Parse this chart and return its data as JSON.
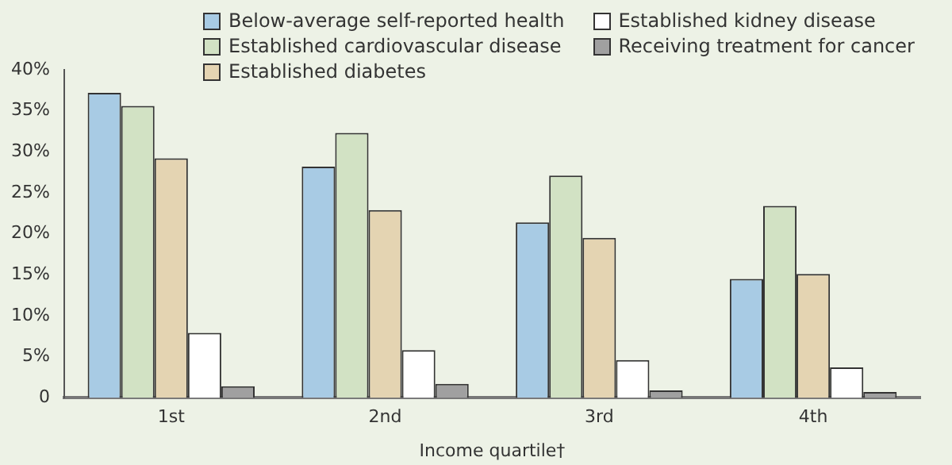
{
  "chart_data": {
    "type": "bar",
    "xlabel": "Income quartile†",
    "categories": [
      "1st",
      "2nd",
      "3rd",
      "4th"
    ],
    "series": [
      {
        "name": "Below-average self-reported health",
        "color": "#a8cbe4",
        "values": [
          37.2,
          28.2,
          21.4,
          14.5
        ]
      },
      {
        "name": "Established cardiovascular disease",
        "color": "#d2e2c4",
        "values": [
          35.6,
          32.3,
          27.1,
          23.4
        ]
      },
      {
        "name": "Established diabetes",
        "color": "#e4d4b2",
        "values": [
          29.2,
          22.9,
          19.5,
          15.1
        ]
      },
      {
        "name": "Established kidney disease",
        "color": "#ffffff",
        "values": [
          7.9,
          5.8,
          4.6,
          3.7
        ]
      },
      {
        "name": "Receiving treatment for cancer",
        "color": "#a0a0a0",
        "values": [
          1.4,
          1.7,
          0.9,
          0.7
        ]
      }
    ],
    "ylim": [
      0,
      40
    ],
    "yticks": [
      {
        "value": 0,
        "label": "0"
      },
      {
        "value": 5,
        "label": "5%"
      },
      {
        "value": 10,
        "label": "10%"
      },
      {
        "value": 15,
        "label": "15%"
      },
      {
        "value": 20,
        "label": "20%"
      },
      {
        "value": 25,
        "label": "25%"
      },
      {
        "value": 30,
        "label": "30%"
      },
      {
        "value": 35,
        "label": "35%"
      },
      {
        "value": 40,
        "label": "40%"
      }
    ],
    "grid": false,
    "legend": "top"
  }
}
